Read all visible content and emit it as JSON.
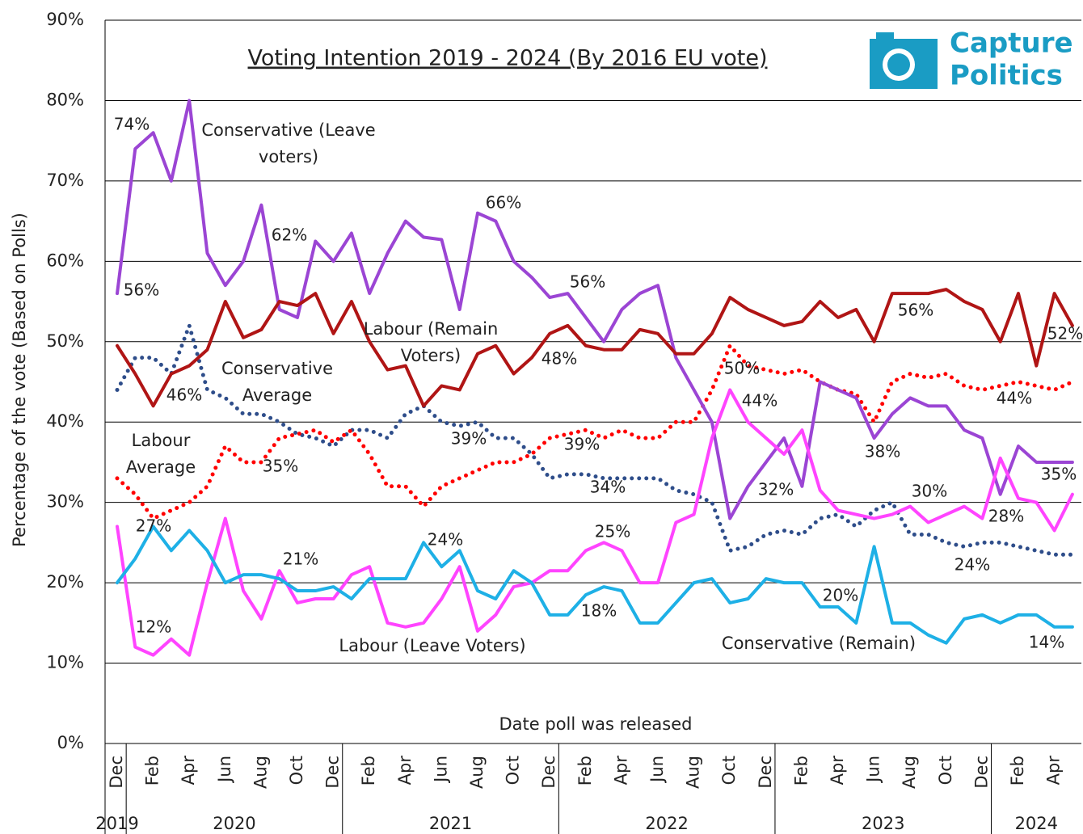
{
  "chart_data": {
    "type": "line",
    "title": "Voting Intention 2019 - 2024 (By 2016 EU vote)",
    "y_label": "Percentage of the vote (Based on Polls)",
    "x_label": "Date poll was released",
    "logo_lines": [
      "Capture",
      "Politics"
    ],
    "categories": [
      "Dec",
      null,
      "Feb",
      null,
      "Apr",
      null,
      "Jun",
      null,
      "Aug",
      null,
      "Oct",
      null,
      "Dec",
      null,
      "Feb",
      null,
      "Apr",
      null,
      "Jun",
      null,
      "Aug",
      null,
      "Oct",
      null,
      "Dec",
      null,
      "Feb",
      null,
      "Apr",
      null,
      "Jun",
      null,
      "Aug",
      null,
      "Oct",
      null,
      "Dec",
      null,
      "Feb",
      null,
      "Apr",
      null,
      "Jun",
      null,
      "Aug",
      null,
      "Oct",
      null,
      "Dec",
      null,
      "Feb",
      null,
      "Apr",
      null
    ],
    "year_groups": [
      {
        "label": "2019",
        "months": 1
      },
      {
        "label": "2020",
        "months": 12
      },
      {
        "label": "2021",
        "months": 12
      },
      {
        "label": "2022",
        "months": 12
      },
      {
        "label": "2023",
        "months": 12
      },
      {
        "label": "2024",
        "months": 5
      }
    ],
    "ylim": [
      0,
      90
    ],
    "yticks": [
      {
        "value": 0,
        "label": "0%"
      },
      {
        "value": 10,
        "label": "10%"
      },
      {
        "value": 20,
        "label": "20%"
      },
      {
        "value": 30,
        "label": "30%"
      },
      {
        "value": 40,
        "label": "40%"
      },
      {
        "value": 50,
        "label": "50%"
      },
      {
        "value": 60,
        "label": "60%"
      },
      {
        "value": 70,
        "label": "70%"
      },
      {
        "value": 80,
        "label": "80%"
      },
      {
        "value": 90,
        "label": "90%"
      }
    ],
    "grid": true,
    "series": [
      {
        "name": "Conservative Average",
        "color": "#2e4d8a",
        "style": "dotted",
        "values": [
          44,
          48,
          48,
          46,
          52,
          44,
          43,
          41,
          41,
          40,
          38.5,
          38,
          37,
          39,
          39,
          38,
          41,
          42,
          40,
          39.5,
          40,
          38,
          38,
          36,
          33,
          33.5,
          33.5,
          33,
          33,
          33,
          33,
          31.5,
          31,
          30,
          24,
          24.5,
          26,
          26.5,
          26,
          28,
          28.5,
          27,
          29,
          30,
          26,
          26,
          25,
          24.5,
          25,
          25,
          24.5,
          24,
          23.5,
          23.5
        ]
      },
      {
        "name": "Labour Average",
        "color": "#ff0000",
        "style": "dotted",
        "values": [
          33,
          31,
          28,
          29,
          30,
          32,
          37,
          35,
          35,
          38,
          38.5,
          39,
          37.5,
          39,
          36,
          32,
          32,
          29.5,
          32,
          33,
          34,
          35,
          35,
          36,
          38,
          38.5,
          39,
          38,
          39,
          38,
          38,
          40,
          40,
          44,
          49.5,
          47,
          46.5,
          46,
          46.5,
          45,
          44,
          43.5,
          40,
          45,
          46,
          45.5,
          46,
          44.5,
          44,
          44.5,
          45,
          44.5,
          44,
          45
        ]
      },
      {
        "name": "Conservative (Leave voters)",
        "color": "#9b45d4",
        "style": "solid",
        "values": [
          56,
          74,
          76,
          70,
          80,
          61,
          57,
          60,
          67,
          54,
          53,
          62.5,
          60,
          63.5,
          56,
          61,
          65,
          63,
          62.7,
          54,
          66,
          65,
          60,
          58,
          55.5,
          56,
          53,
          50,
          54,
          56,
          57,
          48,
          44,
          40,
          28,
          32,
          35,
          38,
          32,
          45,
          44,
          43,
          38,
          41,
          43,
          42,
          42,
          39,
          38,
          31,
          37,
          35,
          35,
          35
        ]
      },
      {
        "name": "Labour (Remain Voters)",
        "color": "#b01515",
        "style": "solid",
        "values": [
          49.5,
          46,
          42,
          46,
          47,
          49,
          55,
          50.5,
          51.5,
          55,
          54.5,
          56,
          51,
          55,
          50,
          46.5,
          47,
          42,
          44.5,
          44,
          48.5,
          49.5,
          46,
          48,
          51,
          52,
          49.5,
          49,
          49,
          51.5,
          51,
          48.5,
          48.5,
          51,
          55.5,
          54,
          53,
          52,
          52.5,
          55,
          53,
          54,
          50,
          56,
          56,
          56,
          56.5,
          55,
          54,
          50,
          56,
          47,
          56,
          52
        ]
      },
      {
        "name": "Labour (Leave Voters)",
        "color": "#ff44ff",
        "style": "solid",
        "values": [
          27,
          12,
          11,
          13,
          11,
          20,
          28,
          19,
          15.5,
          21.5,
          17.5,
          18,
          18,
          21,
          22,
          15,
          14.5,
          15,
          18,
          22,
          14,
          16,
          19.5,
          20,
          21.5,
          21.5,
          24,
          25,
          24,
          20,
          20,
          27.5,
          28.5,
          38,
          44,
          40,
          38,
          36,
          39,
          31.5,
          29,
          28.5,
          28,
          28.5,
          29.5,
          27.5,
          28.5,
          29.5,
          28,
          35.5,
          30.5,
          30,
          26.5,
          31
        ]
      },
      {
        "name": "Conservative (Remain)",
        "color": "#1eb0e6",
        "style": "solid",
        "values": [
          20,
          23,
          27,
          24,
          26.5,
          24,
          20,
          21,
          21,
          20.5,
          19,
          19,
          19.5,
          18,
          20.5,
          20.5,
          20.5,
          25,
          22,
          24,
          19,
          18,
          21.5,
          20,
          16,
          16,
          18.5,
          19.5,
          19,
          15,
          15,
          17.5,
          20,
          20.5,
          17.5,
          18,
          20.5,
          20,
          20,
          17,
          17,
          15,
          24.5,
          15,
          15,
          13.5,
          12.5,
          15.5,
          16,
          15,
          16,
          16,
          14.5,
          14.5
        ]
      }
    ],
    "annotations": [
      "74%",
      "56%",
      "46%",
      "27%",
      "12%",
      "62%",
      "35%",
      "21%",
      "66%",
      "48%",
      "39%",
      "24%",
      "56%",
      "39%",
      "34%",
      "25%",
      "18%",
      "50%",
      "44%",
      "32%",
      "20%",
      "56%",
      "38%",
      "30%",
      "24%",
      "44%",
      "28%",
      "35%",
      "52%",
      "14%"
    ]
  }
}
